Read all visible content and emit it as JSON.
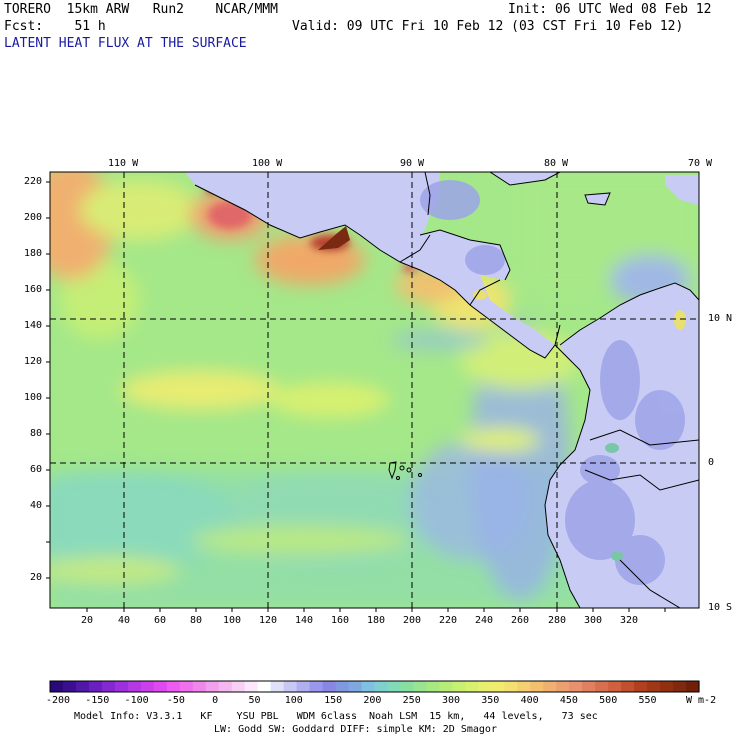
{
  "header": {
    "model": "TORERO  15km ARW   Run2    NCAR/MMM",
    "init": "Init: 06 UTC Wed 08 Feb 12",
    "forecast": "Fcst:    51 h",
    "valid": "Valid: 09 UTC Fri 10 Feb 12 (03 CST Fri 10 Feb 12)",
    "field_title": "LATENT HEAT FLUX AT THE SURFACE"
  },
  "map": {
    "top_lon_labels": [
      "110 W",
      "100 W",
      "90 W",
      "80 W",
      "70 W"
    ],
    "right_lat_labels": [
      "10 N",
      "0",
      "10 S"
    ],
    "y_ticks": [
      "220",
      "200",
      "180",
      "160",
      "140",
      "120",
      "100",
      "80",
      "60",
      "40",
      "20"
    ],
    "x_ticks": [
      "20",
      "40",
      "60",
      "80",
      "100",
      "120",
      "140",
      "160",
      "180",
      "200",
      "220",
      "240",
      "260",
      "280",
      "300",
      "320"
    ]
  },
  "colorbar": {
    "labels": [
      "-200",
      "-150",
      "-100",
      "-50",
      "0",
      "50",
      "100",
      "150",
      "200",
      "250",
      "300",
      "350",
      "400",
      "450",
      "500",
      "550"
    ],
    "units": "W m-2",
    "colors": [
      "#2a0a7a",
      "#3b1090",
      "#5018a8",
      "#6a20c0",
      "#8428d0",
      "#9c30dc",
      "#b438e4",
      "#cc40ec",
      "#e048f0",
      "#ec5cf0",
      "#f070ee",
      "#f088ec",
      "#f0a0ec",
      "#f4b8f0",
      "#f8d0f4",
      "#fce8fa",
      "#ffffff",
      "#e0e0f8",
      "#c8c8f4",
      "#b0b0f0",
      "#9898ec",
      "#8888e4",
      "#8098e0",
      "#80a8e0",
      "#80c0e0",
      "#80d0d0",
      "#80dcb8",
      "#88e0a0",
      "#98e490",
      "#a8e880",
      "#b8ec78",
      "#c8f070",
      "#d8f070",
      "#e8f070",
      "#f0ec70",
      "#f4e070",
      "#f4d070",
      "#f4c070",
      "#f0b070",
      "#eca070",
      "#e89070",
      "#e08060",
      "#d87050",
      "#d06040",
      "#c05030",
      "#b04020",
      "#a03818",
      "#903010",
      "#802810",
      "#702008"
    ]
  },
  "footer": {
    "line1": "Model Info: V3.3.1   KF    YSU PBL   WDM 6class  Noah LSM  15 km,   44 levels,   73 sec",
    "line2": "LW: Godd SW: Goddard DIFF: simple KM: 2D Smagor"
  }
}
